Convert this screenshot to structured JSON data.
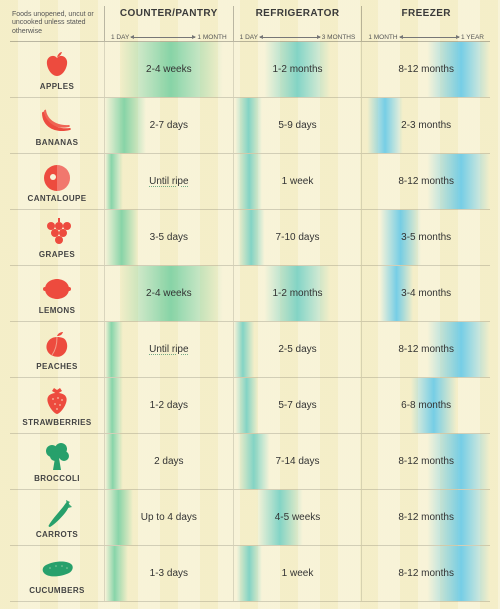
{
  "corner_note": "Foods unopened, uncut or uncooked unless stated otherwise",
  "columns": [
    {
      "title": "COUNTER/PANTRY",
      "scale_lo": "1 DAY",
      "scale_hi": "1 MONTH",
      "grad_from": "#74cfa1",
      "grad_to": "rgba(116,207,161,0)"
    },
    {
      "title": "REFRIGERATOR",
      "scale_lo": "1 DAY",
      "scale_hi": "3 MONTHS",
      "grad_from": "#6fcfc4",
      "grad_to": "rgba(111,207,196,0)"
    },
    {
      "title": "FREEZER",
      "scale_lo": "1 MONTH",
      "scale_hi": "1 YEAR",
      "grad_from": "#5fc7e8",
      "grad_to": "rgba(95,199,232,0)"
    }
  ],
  "icon_colors": {
    "fruit": "#ed4b3e",
    "veg": "#27a06b"
  },
  "rows": [
    {
      "name": "APPLES",
      "icon": "apple",
      "icon_kind": "fruit",
      "cells": [
        {
          "txt": "2-4 weeks",
          "lo": 0.15,
          "hi": 0.88
        },
        {
          "txt": "1-2 months",
          "lo": 0.28,
          "hi": 0.72
        },
        {
          "txt": "8-12 months",
          "lo": 0.55,
          "hi": 1.0
        }
      ]
    },
    {
      "name": "BANANAS",
      "icon": "banana",
      "icon_kind": "fruit",
      "cells": [
        {
          "txt": "2-7 days",
          "lo": 0.02,
          "hi": 0.28
        },
        {
          "txt": "5-9 days",
          "lo": 0.05,
          "hi": 0.18
        },
        {
          "txt": "2-3 months",
          "lo": 0.08,
          "hi": 0.28
        }
      ]
    },
    {
      "name": "CANTALOUPE",
      "icon": "cantaloupe",
      "icon_kind": "fruit",
      "cells": [
        {
          "txt": "Until ripe",
          "lo": 0.0,
          "hi": 0.1,
          "underline": true
        },
        {
          "txt": "1 week",
          "lo": 0.06,
          "hi": 0.18
        },
        {
          "txt": "8-12 months",
          "lo": 0.55,
          "hi": 1.0
        }
      ]
    },
    {
      "name": "GRAPES",
      "icon": "grapes",
      "icon_kind": "fruit",
      "cells": [
        {
          "txt": "3-5 days",
          "lo": 0.04,
          "hi": 0.22
        },
        {
          "txt": "7-10 days",
          "lo": 0.07,
          "hi": 0.2
        },
        {
          "txt": "3-5 months",
          "lo": 0.18,
          "hi": 0.42
        }
      ]
    },
    {
      "name": "LEMONS",
      "icon": "lemon",
      "icon_kind": "fruit",
      "cells": [
        {
          "txt": "2-4 weeks",
          "lo": 0.15,
          "hi": 0.88
        },
        {
          "txt": "1-2 months",
          "lo": 0.28,
          "hi": 0.72
        },
        {
          "txt": "3-4 months",
          "lo": 0.18,
          "hi": 0.36
        }
      ]
    },
    {
      "name": "PEACHES",
      "icon": "peach",
      "icon_kind": "fruit",
      "cells": [
        {
          "txt": "Until ripe",
          "lo": 0.0,
          "hi": 0.1,
          "underline": true
        },
        {
          "txt": "2-5 days",
          "lo": 0.02,
          "hi": 0.12
        },
        {
          "txt": "8-12 months",
          "lo": 0.55,
          "hi": 1.0
        }
      ]
    },
    {
      "name": "STRAWBERRIES",
      "icon": "strawberry",
      "icon_kind": "fruit",
      "cells": [
        {
          "txt": "1-2 days",
          "lo": 0.01,
          "hi": 0.1
        },
        {
          "txt": "5-7 days",
          "lo": 0.05,
          "hi": 0.15
        },
        {
          "txt": "6-8 months",
          "lo": 0.42,
          "hi": 0.7
        }
      ]
    },
    {
      "name": "BROCCOLI",
      "icon": "broccoli",
      "icon_kind": "veg",
      "cells": [
        {
          "txt": "2 days",
          "lo": 0.02,
          "hi": 0.1
        },
        {
          "txt": "7-14 days",
          "lo": 0.07,
          "hi": 0.24
        },
        {
          "txt": "8-12 months",
          "lo": 0.55,
          "hi": 1.0
        }
      ]
    },
    {
      "name": "CARROTS",
      "icon": "carrot",
      "icon_kind": "veg",
      "cells": [
        {
          "txt": "Up to 4 days",
          "lo": 0.03,
          "hi": 0.18
        },
        {
          "txt": "4-5 weeks",
          "lo": 0.22,
          "hi": 0.5
        },
        {
          "txt": "8-12 months",
          "lo": 0.55,
          "hi": 1.0
        }
      ]
    },
    {
      "name": "CUCUMBERS",
      "icon": "cucumber",
      "icon_kind": "veg",
      "cells": [
        {
          "txt": "1-3 days",
          "lo": 0.01,
          "hi": 0.14
        },
        {
          "txt": "1 week",
          "lo": 0.06,
          "hi": 0.18
        },
        {
          "txt": "8-12 months",
          "lo": 0.55,
          "hi": 1.0
        }
      ]
    }
  ]
}
